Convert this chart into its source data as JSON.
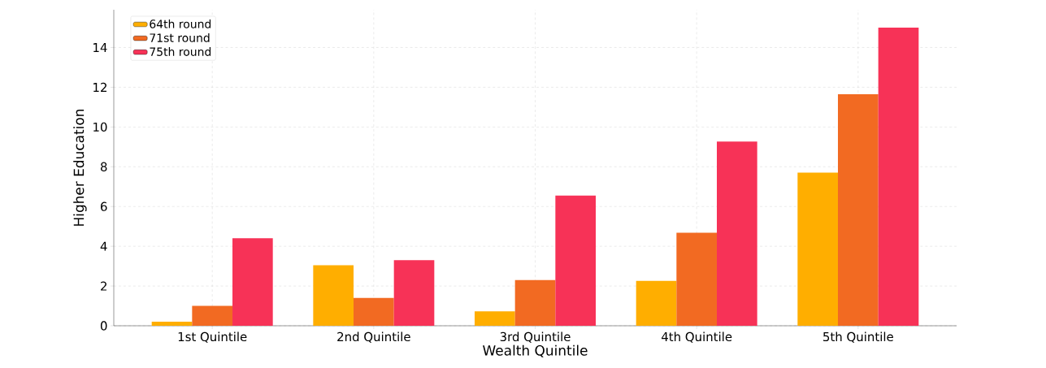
{
  "chart_data": {
    "type": "bar",
    "xlabel": "Wealth Quintile",
    "ylabel": "Higher Education",
    "categories": [
      "1st Quintile",
      "2nd Quintile",
      "3rd Quintile",
      "4th Quintile",
      "5th Quintile"
    ],
    "series": [
      {
        "name": "64th round",
        "color": "#ffae00",
        "values": [
          0.2,
          3.05,
          0.73,
          2.26,
          7.7
        ]
      },
      {
        "name": "71st round",
        "color": "#f26a22",
        "values": [
          1.0,
          1.4,
          2.3,
          4.68,
          11.65
        ]
      },
      {
        "name": "75th round",
        "color": "#f73257",
        "values": [
          4.4,
          3.3,
          6.55,
          9.27,
          15.0
        ]
      }
    ],
    "ylim": [
      0,
      15.9
    ],
    "yticks": [
      0,
      2,
      4,
      6,
      8,
      10,
      12,
      14
    ],
    "grid": true,
    "legend": "top left"
  }
}
